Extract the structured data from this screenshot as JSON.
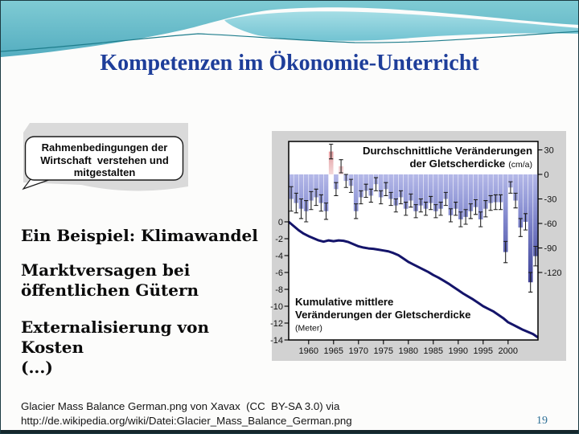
{
  "slide": {
    "title": "Kompetenzen im Ökonomie-Unterricht",
    "callout": {
      "lines": [
        "Rahmenbedingungen der",
        "Wirtschaft  verstehen und",
        "mitgestalten"
      ]
    },
    "bullets": [
      "Ein Beispiel: Klimawandel",
      "Marktversagen bei öffentlichen Gütern",
      "Externalisierung von Kosten",
      "(...)"
    ],
    "credit_line1": "Glacier Mass Balance German.png von Xavax  (CC  BY-SA 3.0) via",
    "credit_line2": "http://de.wikipedia.org/wiki/Datei:Glacier_Mass_Balance_German.png",
    "page_number": "19",
    "accent_color": "#1e3e9a"
  },
  "chart_data": {
    "type": "bar+line",
    "title_line1": "Durchschnittliche Veränderungen",
    "title_line2": "der Gletscherdicke",
    "title_unit": "(cm/a)",
    "legend_line1": "Kumulative mittlere",
    "legend_line2": "Veränderungen der Gletscherdicke",
    "legend_unit": "(Meter)",
    "bar_axis": {
      "ticks": [
        30,
        0,
        -30,
        -60,
        -90,
        -120
      ],
      "unit": "cm/a"
    },
    "line_axis": {
      "ticks": [
        0,
        -2,
        -4,
        -6,
        -8,
        -10,
        -12,
        -14
      ],
      "unit": "Meter"
    },
    "x_ticks": [
      1960,
      1965,
      1970,
      1975,
      1980,
      1985,
      1990,
      1995,
      2000
    ],
    "bar_years_start": 1956,
    "annual_change_cm": [
      -30,
      -35,
      -42,
      -45,
      -32,
      -28,
      -35,
      -45,
      28,
      -18,
      10,
      -8,
      -14,
      -45,
      -28,
      -20,
      -26,
      -12,
      -28,
      -18,
      -30,
      -38,
      -28,
      -42,
      -32,
      -45,
      -38,
      -42,
      -35,
      -45,
      -42,
      -30,
      -50,
      -42,
      -55,
      -52,
      -45,
      -40,
      -55,
      -42,
      -35,
      -34,
      -34,
      -95,
      -16,
      -32,
      -65,
      -58,
      -132,
      -100
    ],
    "annual_error_cm": [
      15,
      12,
      12,
      13,
      11,
      10,
      10,
      10,
      9,
      8,
      8,
      8,
      8,
      9,
      8,
      8,
      8,
      8,
      8,
      8,
      8,
      8,
      8,
      8,
      8,
      8,
      8,
      8,
      8,
      8,
      8,
      8,
      8,
      8,
      9,
      9,
      9,
      9,
      9,
      10,
      9,
      9,
      9,
      13,
      7,
      9,
      11,
      10,
      12,
      12
    ],
    "cumulative_years_start": 1956,
    "cumulative_m": [
      0,
      -0.5,
      -1.0,
      -1.4,
      -1.7,
      -1.95,
      -2.2,
      -2.35,
      -2.2,
      -2.3,
      -2.2,
      -2.25,
      -2.4,
      -2.65,
      -2.9,
      -3.05,
      -3.15,
      -3.2,
      -3.3,
      -3.4,
      -3.5,
      -3.7,
      -3.95,
      -4.35,
      -4.75,
      -5.05,
      -5.35,
      -5.65,
      -5.95,
      -6.3,
      -6.6,
      -6.95,
      -7.3,
      -7.7,
      -8.1,
      -8.5,
      -8.85,
      -9.2,
      -9.6,
      -10.0,
      -10.3,
      -10.6,
      -11.0,
      -11.4,
      -11.9,
      -12.2,
      -12.5,
      -12.8,
      -13.05,
      -13.3,
      -13.7
    ],
    "bar_color_top": "#b4b8e8",
    "bar_color_deep": "#3f3f95",
    "bar_color_pos": "#e09296",
    "line_color": "#14146a"
  }
}
